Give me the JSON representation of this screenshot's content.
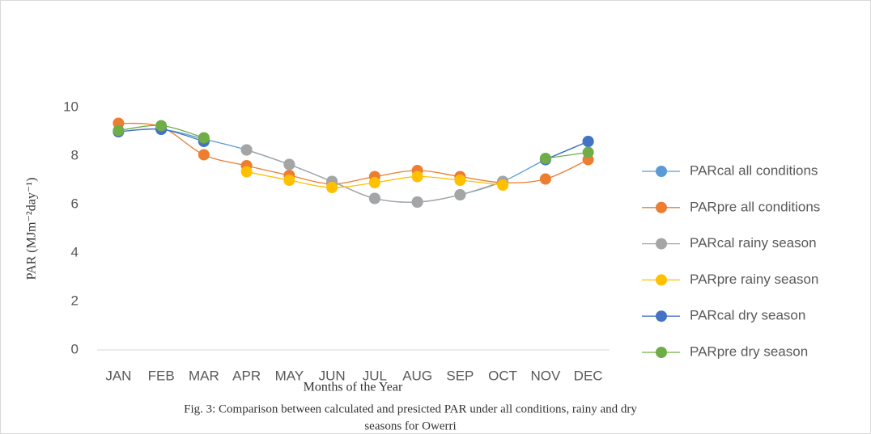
{
  "chart_data": {
    "type": "line",
    "y_label": "PAR (MJm⁻²day⁻¹)",
    "x_label": "Months of the Year",
    "caption": [
      "Fig. 3: Comparison between calculated and presicted PAR under all conditions, rainy  and dry",
      "seasons for Owerri"
    ],
    "categories": [
      "JAN",
      "FEB",
      "MAR",
      "APR",
      "MAY",
      "JUN",
      "JUL",
      "AUG",
      "SEP",
      "OCT",
      "NOV",
      "DEC"
    ],
    "series": [
      {
        "name": "PARcal all conditions",
        "color": "#5b9bd5",
        "values": [
          9.0,
          9.1,
          8.7,
          8.25,
          7.65,
          6.95,
          6.25,
          6.1,
          6.4,
          6.95,
          7.85,
          8.6
        ]
      },
      {
        "name": "PARpre all conditions",
        "color": "#ed7d31",
        "values": [
          9.35,
          9.2,
          8.05,
          7.6,
          7.2,
          6.85,
          7.15,
          7.4,
          7.15,
          6.9,
          7.05,
          7.85
        ]
      },
      {
        "name": "PARcal rainy season",
        "color": "#a5a5a5",
        "values": [
          null,
          null,
          null,
          8.25,
          7.65,
          6.95,
          6.25,
          6.1,
          6.4,
          6.95,
          null,
          null
        ]
      },
      {
        "name": "PARpre rainy season",
        "color": "#ffc000",
        "values": [
          null,
          null,
          null,
          7.35,
          7.0,
          6.7,
          6.9,
          7.15,
          7.0,
          6.8,
          null,
          null
        ]
      },
      {
        "name": "PARcal dry season",
        "color": "#4472c4",
        "values": [
          9.0,
          9.1,
          8.6,
          null,
          null,
          null,
          null,
          null,
          null,
          null,
          7.85,
          8.6
        ]
      },
      {
        "name": "PARpre dry season",
        "color": "#70ad47",
        "values": [
          9.05,
          9.25,
          8.75,
          null,
          null,
          null,
          null,
          null,
          null,
          null,
          7.9,
          8.15
        ]
      }
    ],
    "ylim": [
      0,
      10
    ],
    "yticks": [
      0,
      2,
      4,
      6,
      8,
      10
    ],
    "legend": "right"
  }
}
